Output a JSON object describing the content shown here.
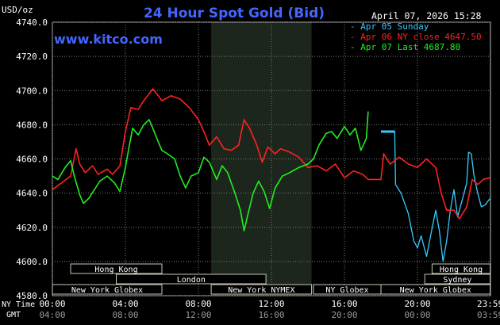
{
  "chart_data": {
    "type": "line",
    "title": "24 Hour Spot Gold (Bid)",
    "website": "www.kitco.com",
    "timestamp": "April 07, 2026 15:28",
    "y_unit": "USD/oz",
    "ylim": [
      4580,
      4740
    ],
    "yticks": [
      "4740.0",
      "4720.0",
      "4700.0",
      "4680.0",
      "4660.0",
      "4640.0",
      "4620.0",
      "4600.0",
      "4580.0"
    ],
    "y_values": [
      4740,
      4720,
      4700,
      4680,
      4660,
      4640,
      4620,
      4600,
      4580
    ],
    "xlim": [
      0,
      24
    ],
    "x_axis_labels": {
      "row1_title": "NY Time",
      "row2_title": "GMT",
      "ny": [
        "00:00",
        "04:00",
        "08:00",
        "12:00",
        "16:00",
        "20:00",
        "23:59"
      ],
      "gmt": [
        "04:00",
        "08:00",
        "12:00",
        "16:00",
        "20:00",
        "00:00",
        "03:59"
      ],
      "hours": [
        0,
        4,
        8,
        12,
        16,
        20,
        23.983
      ]
    },
    "legend": [
      {
        "text": "- Apr 05 Sunday",
        "color": "#33ccff"
      },
      {
        "text": "- Apr 06 NY close 4647.50",
        "color": "#ff2222"
      },
      {
        "text": "- Apr 07 Last 4687.80",
        "color": "#22ee22"
      }
    ],
    "shaded_period": [
      8.7,
      14.2
    ],
    "sessions": [
      {
        "label": "Hong Kong",
        "start": 1.0,
        "end": 6.0,
        "row": 0
      },
      {
        "label": "London",
        "start": 3.5,
        "end": 11.7,
        "row": 1
      },
      {
        "label": "New York Globex",
        "start": 0.0,
        "end": 6.0,
        "row": 2
      },
      {
        "label": "New York NYMEX",
        "start": 8.7,
        "end": 14.2,
        "row": 2
      },
      {
        "label": "NY Globex",
        "start": 14.3,
        "end": 18.0,
        "row": 2
      },
      {
        "label": "Hong Kong",
        "start": 20.8,
        "end": 23.983,
        "row": 0
      },
      {
        "label": "Sydney",
        "start": 20.4,
        "end": 23.983,
        "row": 1
      },
      {
        "label": "New York Globex",
        "start": 18.0,
        "end": 23.983,
        "row": 2
      }
    ],
    "series": [
      {
        "name": "Apr 05 Sunday",
        "color": "#33ccff",
        "points": [
          [
            18.0,
            4676
          ],
          [
            18.75,
            4676
          ],
          [
            18.8,
            4645
          ],
          [
            19.1,
            4640
          ],
          [
            19.5,
            4628
          ],
          [
            19.8,
            4612
          ],
          [
            20.0,
            4608
          ],
          [
            20.2,
            4615
          ],
          [
            20.5,
            4603
          ],
          [
            20.7,
            4614
          ],
          [
            21.0,
            4630
          ],
          [
            21.2,
            4618
          ],
          [
            21.4,
            4600
          ],
          [
            21.6,
            4612
          ],
          [
            21.8,
            4630
          ],
          [
            22.0,
            4642
          ],
          [
            22.2,
            4626
          ],
          [
            22.5,
            4638
          ],
          [
            22.7,
            4646
          ],
          [
            22.8,
            4664
          ],
          [
            22.95,
            4663
          ],
          [
            23.1,
            4650
          ],
          [
            23.3,
            4640
          ],
          [
            23.5,
            4632
          ],
          [
            23.7,
            4633
          ],
          [
            23.983,
            4637
          ]
        ]
      },
      {
        "name": "Apr 06 NY close 4647.50",
        "color": "#ff2222",
        "points": [
          [
            0.0,
            4642
          ],
          [
            0.5,
            4646
          ],
          [
            1.0,
            4650
          ],
          [
            1.3,
            4666
          ],
          [
            1.5,
            4657
          ],
          [
            1.8,
            4652
          ],
          [
            2.2,
            4656
          ],
          [
            2.5,
            4651
          ],
          [
            3.0,
            4654
          ],
          [
            3.3,
            4651
          ],
          [
            3.7,
            4656
          ],
          [
            4.0,
            4676
          ],
          [
            4.3,
            4690
          ],
          [
            4.7,
            4689
          ],
          [
            5.0,
            4694
          ],
          [
            5.5,
            4701
          ],
          [
            5.8,
            4697
          ],
          [
            6.0,
            4694
          ],
          [
            6.5,
            4697
          ],
          [
            7.0,
            4695
          ],
          [
            7.5,
            4690
          ],
          [
            8.0,
            4683
          ],
          [
            8.3,
            4676
          ],
          [
            8.6,
            4668
          ],
          [
            9.0,
            4673
          ],
          [
            9.4,
            4666
          ],
          [
            9.8,
            4665
          ],
          [
            10.2,
            4668
          ],
          [
            10.5,
            4683
          ],
          [
            10.8,
            4678
          ],
          [
            11.2,
            4668
          ],
          [
            11.5,
            4658
          ],
          [
            11.8,
            4667
          ],
          [
            12.2,
            4663
          ],
          [
            12.5,
            4666
          ],
          [
            13.0,
            4664
          ],
          [
            13.5,
            4661
          ],
          [
            14.0,
            4655
          ],
          [
            14.5,
            4656
          ],
          [
            15.0,
            4653
          ],
          [
            15.5,
            4657
          ],
          [
            16.0,
            4649
          ],
          [
            16.5,
            4653
          ],
          [
            17.0,
            4651
          ],
          [
            17.3,
            4648
          ],
          [
            18.0,
            4648
          ],
          [
            18.15,
            4663
          ],
          [
            18.5,
            4657
          ],
          [
            19.0,
            4661
          ],
          [
            19.5,
            4657
          ],
          [
            20.0,
            4655
          ],
          [
            20.5,
            4660
          ],
          [
            21.0,
            4655
          ],
          [
            21.3,
            4640
          ],
          [
            21.6,
            4630
          ],
          [
            22.0,
            4630
          ],
          [
            22.3,
            4625
          ],
          [
            22.7,
            4632
          ],
          [
            23.0,
            4648
          ],
          [
            23.3,
            4645
          ],
          [
            23.6,
            4648
          ],
          [
            23.983,
            4649
          ]
        ]
      },
      {
        "name": "Apr 07 Last 4687.80",
        "color": "#22ee22",
        "points": [
          [
            0.0,
            4650
          ],
          [
            0.3,
            4648
          ],
          [
            0.7,
            4655
          ],
          [
            1.0,
            4659
          ],
          [
            1.2,
            4650
          ],
          [
            1.5,
            4639
          ],
          [
            1.7,
            4634
          ],
          [
            2.0,
            4637
          ],
          [
            2.3,
            4642
          ],
          [
            2.6,
            4647
          ],
          [
            3.0,
            4650
          ],
          [
            3.4,
            4646
          ],
          [
            3.7,
            4641
          ],
          [
            4.0,
            4655
          ],
          [
            4.2,
            4667
          ],
          [
            4.4,
            4678
          ],
          [
            4.7,
            4674
          ],
          [
            5.0,
            4680
          ],
          [
            5.3,
            4683
          ],
          [
            5.5,
            4678
          ],
          [
            5.8,
            4670
          ],
          [
            6.0,
            4665
          ],
          [
            6.3,
            4663
          ],
          [
            6.7,
            4660
          ],
          [
            7.0,
            4650
          ],
          [
            7.3,
            4643
          ],
          [
            7.6,
            4650
          ],
          [
            8.0,
            4652
          ],
          [
            8.3,
            4661
          ],
          [
            8.6,
            4658
          ],
          [
            9.0,
            4648
          ],
          [
            9.3,
            4656
          ],
          [
            9.6,
            4652
          ],
          [
            10.0,
            4640
          ],
          [
            10.3,
            4630
          ],
          [
            10.5,
            4618
          ],
          [
            10.7,
            4627
          ],
          [
            11.0,
            4640
          ],
          [
            11.3,
            4647
          ],
          [
            11.6,
            4641
          ],
          [
            11.9,
            4631
          ],
          [
            12.2,
            4643
          ],
          [
            12.6,
            4650
          ],
          [
            13.0,
            4652
          ],
          [
            13.5,
            4655
          ],
          [
            14.0,
            4657
          ],
          [
            14.3,
            4660
          ],
          [
            14.6,
            4668
          ],
          [
            15.0,
            4675
          ],
          [
            15.3,
            4676
          ],
          [
            15.6,
            4672
          ],
          [
            16.0,
            4679
          ],
          [
            16.3,
            4674
          ],
          [
            16.6,
            4678
          ],
          [
            16.9,
            4665
          ],
          [
            17.2,
            4672
          ],
          [
            17.3,
            4687.8
          ]
        ]
      }
    ]
  }
}
